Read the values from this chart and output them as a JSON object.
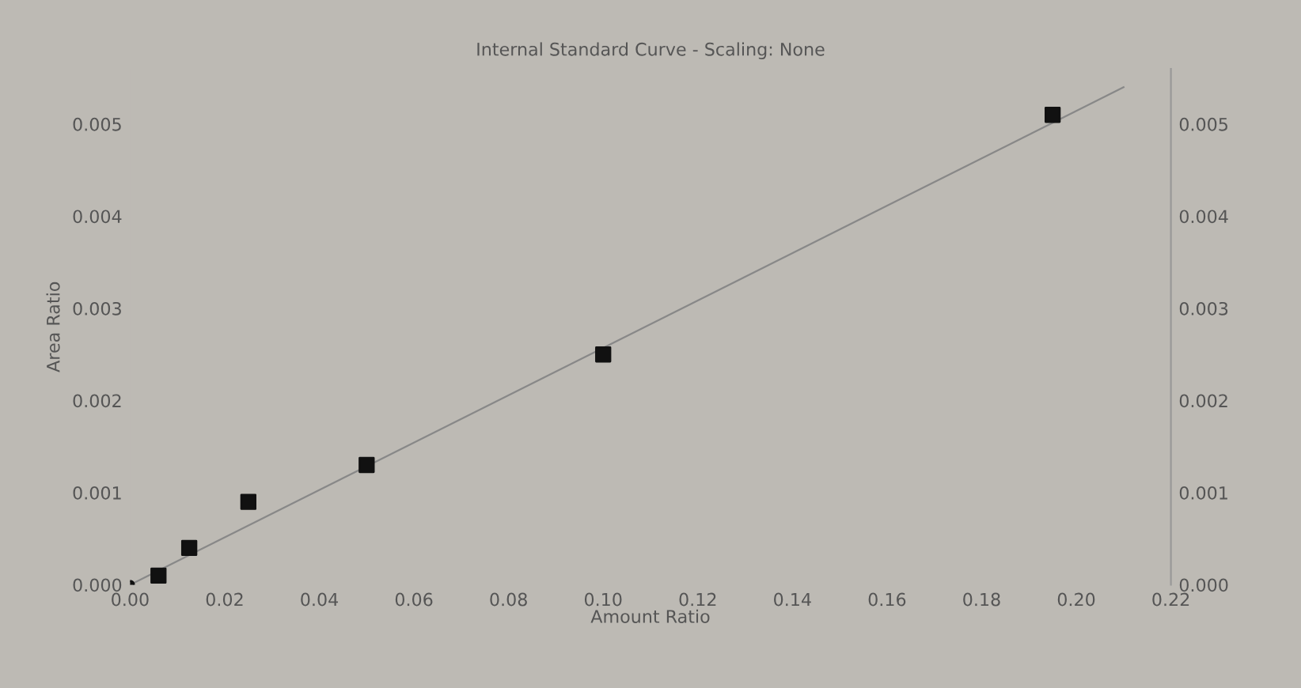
{
  "chart_data": {
    "type": "scatter",
    "title": "Internal Standard Curve - Scaling: None",
    "xlabel": "Amount Ratio",
    "ylabel": "Area Ratio",
    "series": [
      {
        "marker": "square",
        "color": "#111111",
        "x": [
          0.006,
          0.0125,
          0.025,
          0.05,
          0.1,
          0.195
        ],
        "values": [
          0.0001,
          0.0004,
          0.0009,
          0.0013,
          0.0025,
          0.0051
        ]
      },
      {
        "marker": "circle",
        "color": "#111111",
        "x": [
          0.0
        ],
        "values": [
          0.0
        ]
      },
      {
        "type": "line",
        "marker": "none",
        "color": "#888888",
        "x": [
          0.0,
          0.21
        ],
        "values": [
          0.0,
          0.0054
        ]
      }
    ],
    "xlim": [
      0,
      0.22
    ],
    "ylim": [
      0,
      0.0056
    ],
    "y2lim": [
      0,
      0.0056
    ],
    "xticks": [
      {
        "value": 0,
        "label": "0.00"
      },
      {
        "value": 0.02,
        "label": "0.02"
      },
      {
        "value": 0.04,
        "label": "0.04"
      },
      {
        "value": 0.06,
        "label": "0.06"
      },
      {
        "value": 0.08,
        "label": "0.08"
      },
      {
        "value": 0.1,
        "label": "0.10"
      },
      {
        "value": 0.12,
        "label": "0.12"
      },
      {
        "value": 0.14,
        "label": "0.14"
      },
      {
        "value": 0.16,
        "label": "0.16"
      },
      {
        "value": 0.18,
        "label": "0.18"
      },
      {
        "value": 0.2,
        "label": "0.20"
      },
      {
        "value": 0.22,
        "label": "0.22"
      }
    ],
    "yticks": [
      {
        "value": 0,
        "label": "0.000"
      },
      0.001,
      0.002,
      0.003,
      0.004,
      0.005
    ],
    "y2ticks": [
      {
        "value": 0,
        "label": "0.000"
      },
      0.001,
      0.002,
      0.003,
      0.004,
      0.005
    ],
    "grid": false,
    "legend": false
  }
}
